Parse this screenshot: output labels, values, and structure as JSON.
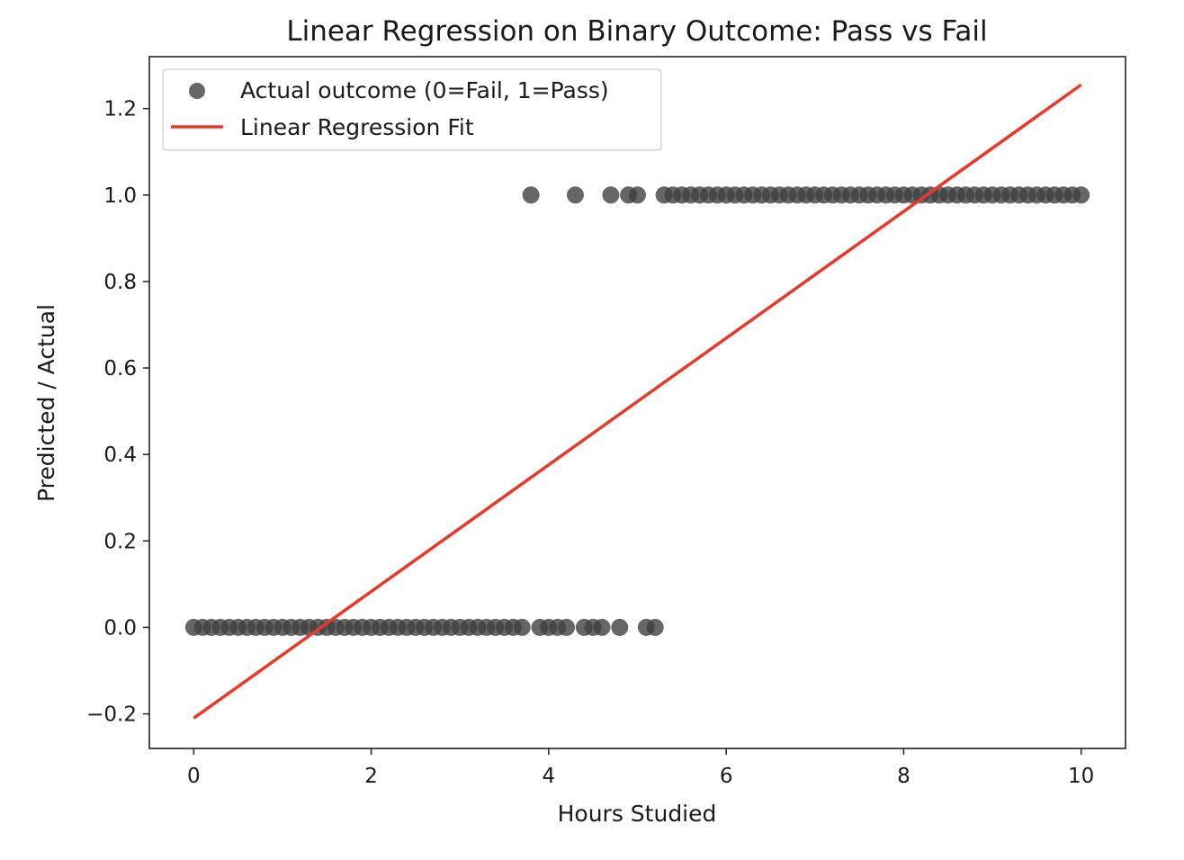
{
  "chart_data": {
    "type": "scatter",
    "title": "Linear Regression on Binary Outcome: Pass vs Fail",
    "xlabel": "Hours Studied",
    "ylabel": "Predicted / Actual",
    "xlim": [
      -0.5,
      10.5
    ],
    "ylim": [
      -0.28,
      1.32
    ],
    "xticks": [
      0,
      2,
      4,
      6,
      8,
      10
    ],
    "xtick_labels": [
      "0",
      "2",
      "4",
      "6",
      "8",
      "10"
    ],
    "yticks": [
      -0.2,
      0.0,
      0.2,
      0.4,
      0.6,
      0.8,
      1.0,
      1.2
    ],
    "ytick_labels": [
      "−0.2",
      "0.0",
      "0.2",
      "0.4",
      "0.6",
      "0.8",
      "1.0",
      "1.2"
    ],
    "grid": false,
    "legend_position": "upper-left",
    "series": [
      {
        "name": "Actual outcome (0=Fail, 1=Pass)",
        "kind": "scatter",
        "color": "#404040",
        "points": [
          [
            0.0,
            0
          ],
          [
            0.1,
            0
          ],
          [
            0.2,
            0
          ],
          [
            0.3,
            0
          ],
          [
            0.4,
            0
          ],
          [
            0.5,
            0
          ],
          [
            0.6,
            0
          ],
          [
            0.7,
            0
          ],
          [
            0.8,
            0
          ],
          [
            0.9,
            0
          ],
          [
            1.0,
            0
          ],
          [
            1.1,
            0
          ],
          [
            1.2,
            0
          ],
          [
            1.3,
            0
          ],
          [
            1.4,
            0
          ],
          [
            1.5,
            0
          ],
          [
            1.6,
            0
          ],
          [
            1.7,
            0
          ],
          [
            1.8,
            0
          ],
          [
            1.9,
            0
          ],
          [
            2.0,
            0
          ],
          [
            2.1,
            0
          ],
          [
            2.2,
            0
          ],
          [
            2.3,
            0
          ],
          [
            2.4,
            0
          ],
          [
            2.5,
            0
          ],
          [
            2.6,
            0
          ],
          [
            2.7,
            0
          ],
          [
            2.8,
            0
          ],
          [
            2.9,
            0
          ],
          [
            3.0,
            0
          ],
          [
            3.1,
            0
          ],
          [
            3.2,
            0
          ],
          [
            3.3,
            0
          ],
          [
            3.4,
            0
          ],
          [
            3.5,
            0
          ],
          [
            3.6,
            0
          ],
          [
            3.7,
            0
          ],
          [
            3.9,
            0
          ],
          [
            4.0,
            0
          ],
          [
            4.1,
            0
          ],
          [
            4.2,
            0
          ],
          [
            4.4,
            0
          ],
          [
            4.5,
            0
          ],
          [
            4.6,
            0
          ],
          [
            4.8,
            0
          ],
          [
            5.1,
            0
          ],
          [
            5.2,
            0
          ],
          [
            3.8,
            1
          ],
          [
            4.3,
            1
          ],
          [
            4.7,
            1
          ],
          [
            4.9,
            1
          ],
          [
            5.0,
            1
          ],
          [
            5.3,
            1
          ],
          [
            5.4,
            1
          ],
          [
            5.5,
            1
          ],
          [
            5.6,
            1
          ],
          [
            5.7,
            1
          ],
          [
            5.8,
            1
          ],
          [
            5.9,
            1
          ],
          [
            6.0,
            1
          ],
          [
            6.1,
            1
          ],
          [
            6.2,
            1
          ],
          [
            6.3,
            1
          ],
          [
            6.4,
            1
          ],
          [
            6.5,
            1
          ],
          [
            6.6,
            1
          ],
          [
            6.7,
            1
          ],
          [
            6.8,
            1
          ],
          [
            6.9,
            1
          ],
          [
            7.0,
            1
          ],
          [
            7.1,
            1
          ],
          [
            7.2,
            1
          ],
          [
            7.3,
            1
          ],
          [
            7.4,
            1
          ],
          [
            7.5,
            1
          ],
          [
            7.6,
            1
          ],
          [
            7.7,
            1
          ],
          [
            7.8,
            1
          ],
          [
            7.9,
            1
          ],
          [
            8.0,
            1
          ],
          [
            8.1,
            1
          ],
          [
            8.2,
            1
          ],
          [
            8.3,
            1
          ],
          [
            8.4,
            1
          ],
          [
            8.5,
            1
          ],
          [
            8.6,
            1
          ],
          [
            8.7,
            1
          ],
          [
            8.8,
            1
          ],
          [
            8.9,
            1
          ],
          [
            9.0,
            1
          ],
          [
            9.1,
            1
          ],
          [
            9.2,
            1
          ],
          [
            9.3,
            1
          ],
          [
            9.4,
            1
          ],
          [
            9.5,
            1
          ],
          [
            9.6,
            1
          ],
          [
            9.7,
            1
          ],
          [
            9.8,
            1
          ],
          [
            9.9,
            1
          ],
          [
            10.0,
            1
          ]
        ]
      },
      {
        "name": "Linear Regression Fit",
        "kind": "line",
        "color": "#e8392a",
        "points": [
          [
            0.0,
            -0.21
          ],
          [
            10.0,
            1.255
          ]
        ]
      }
    ]
  }
}
